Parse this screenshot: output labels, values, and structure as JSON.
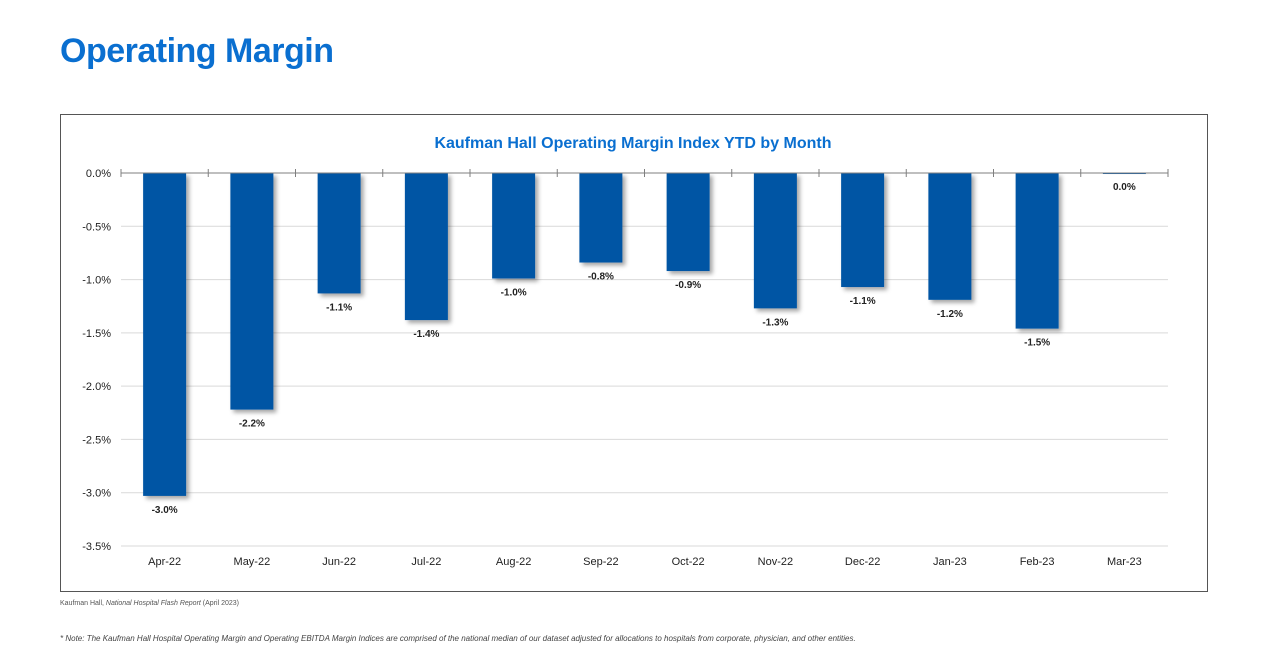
{
  "page": {
    "title": "Operating Margin",
    "source_prefix": "Kaufman Hall, ",
    "source_report": "National Hospital Flash Report",
    "source_suffix": " (April 2023)",
    "footnote": "* Note: The Kaufman Hall Hospital Operating Margin and Operating EBITDA Margin Indices are comprised of the national median of our dataset adjusted for allocations to hospitals from corporate, physician, and other entities."
  },
  "colors": {
    "title": "#0a6fd0",
    "chart_title": "#0a6fd0",
    "bar": "#0055a4",
    "grid": "#d9d9d9"
  },
  "chart_data": {
    "type": "bar",
    "title": "Kaufman Hall Operating Margin Index YTD by Month",
    "categories": [
      "Apr-22",
      "May-22",
      "Jun-22",
      "Jul-22",
      "Aug-22",
      "Sep-22",
      "Oct-22",
      "Nov-22",
      "Dec-22",
      "Jan-23",
      "Feb-23",
      "Mar-23"
    ],
    "values": [
      -3.03,
      -2.22,
      -1.13,
      -1.38,
      -0.99,
      -0.84,
      -0.92,
      -1.27,
      -1.07,
      -1.19,
      -1.46,
      0.0
    ],
    "data_labels": [
      "-3.0%",
      "-2.2%",
      "-1.1%",
      "-1.4%",
      "-1.0%",
      "-0.8%",
      "-0.9%",
      "-1.3%",
      "-1.1%",
      "-1.2%",
      "-1.5%",
      "0.0%"
    ],
    "ylim": [
      -3.5,
      0
    ],
    "yticks": [
      0,
      -0.5,
      -1.0,
      -1.5,
      -2.0,
      -2.5,
      -3.0,
      -3.5
    ],
    "ytick_labels": [
      "0.0%",
      "-0.5%",
      "-1.0%",
      "-1.5%",
      "-2.0%",
      "-2.5%",
      "-3.0%",
      "-3.5%"
    ],
    "xlabel": "",
    "ylabel": "",
    "grid": true,
    "legend": "none"
  }
}
